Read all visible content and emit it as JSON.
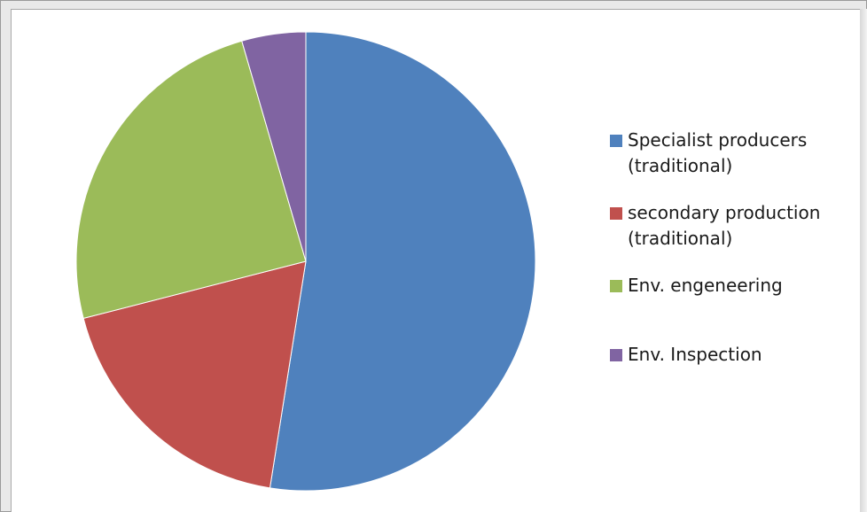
{
  "chart_data": {
    "type": "pie",
    "title": "",
    "legend_position": "right",
    "slices": [
      {
        "label": "Specialist producers\n(traditional)",
        "value": 52.5,
        "color": "#4F81BD"
      },
      {
        "label": "secondary production\n(traditional)",
        "value": 18.5,
        "color": "#C0504D"
      },
      {
        "label": "Env. engeneering",
        "value": 24.5,
        "color": "#9BBB59"
      },
      {
        "label": "Env. Inspection",
        "value": 4.5,
        "color": "#8064A2"
      }
    ]
  },
  "legend": {
    "items": [
      {
        "label": "Specialist producers\n(traditional)",
        "icon": "square-swatch",
        "color": "#4F81BD"
      },
      {
        "label": "secondary production\n(traditional)",
        "icon": "square-swatch",
        "color": "#C0504D"
      },
      {
        "label": "Env. engeneering",
        "icon": "square-swatch",
        "color": "#9BBB59"
      },
      {
        "label": "Env. Inspection",
        "icon": "square-swatch",
        "color": "#8064A2"
      }
    ]
  }
}
